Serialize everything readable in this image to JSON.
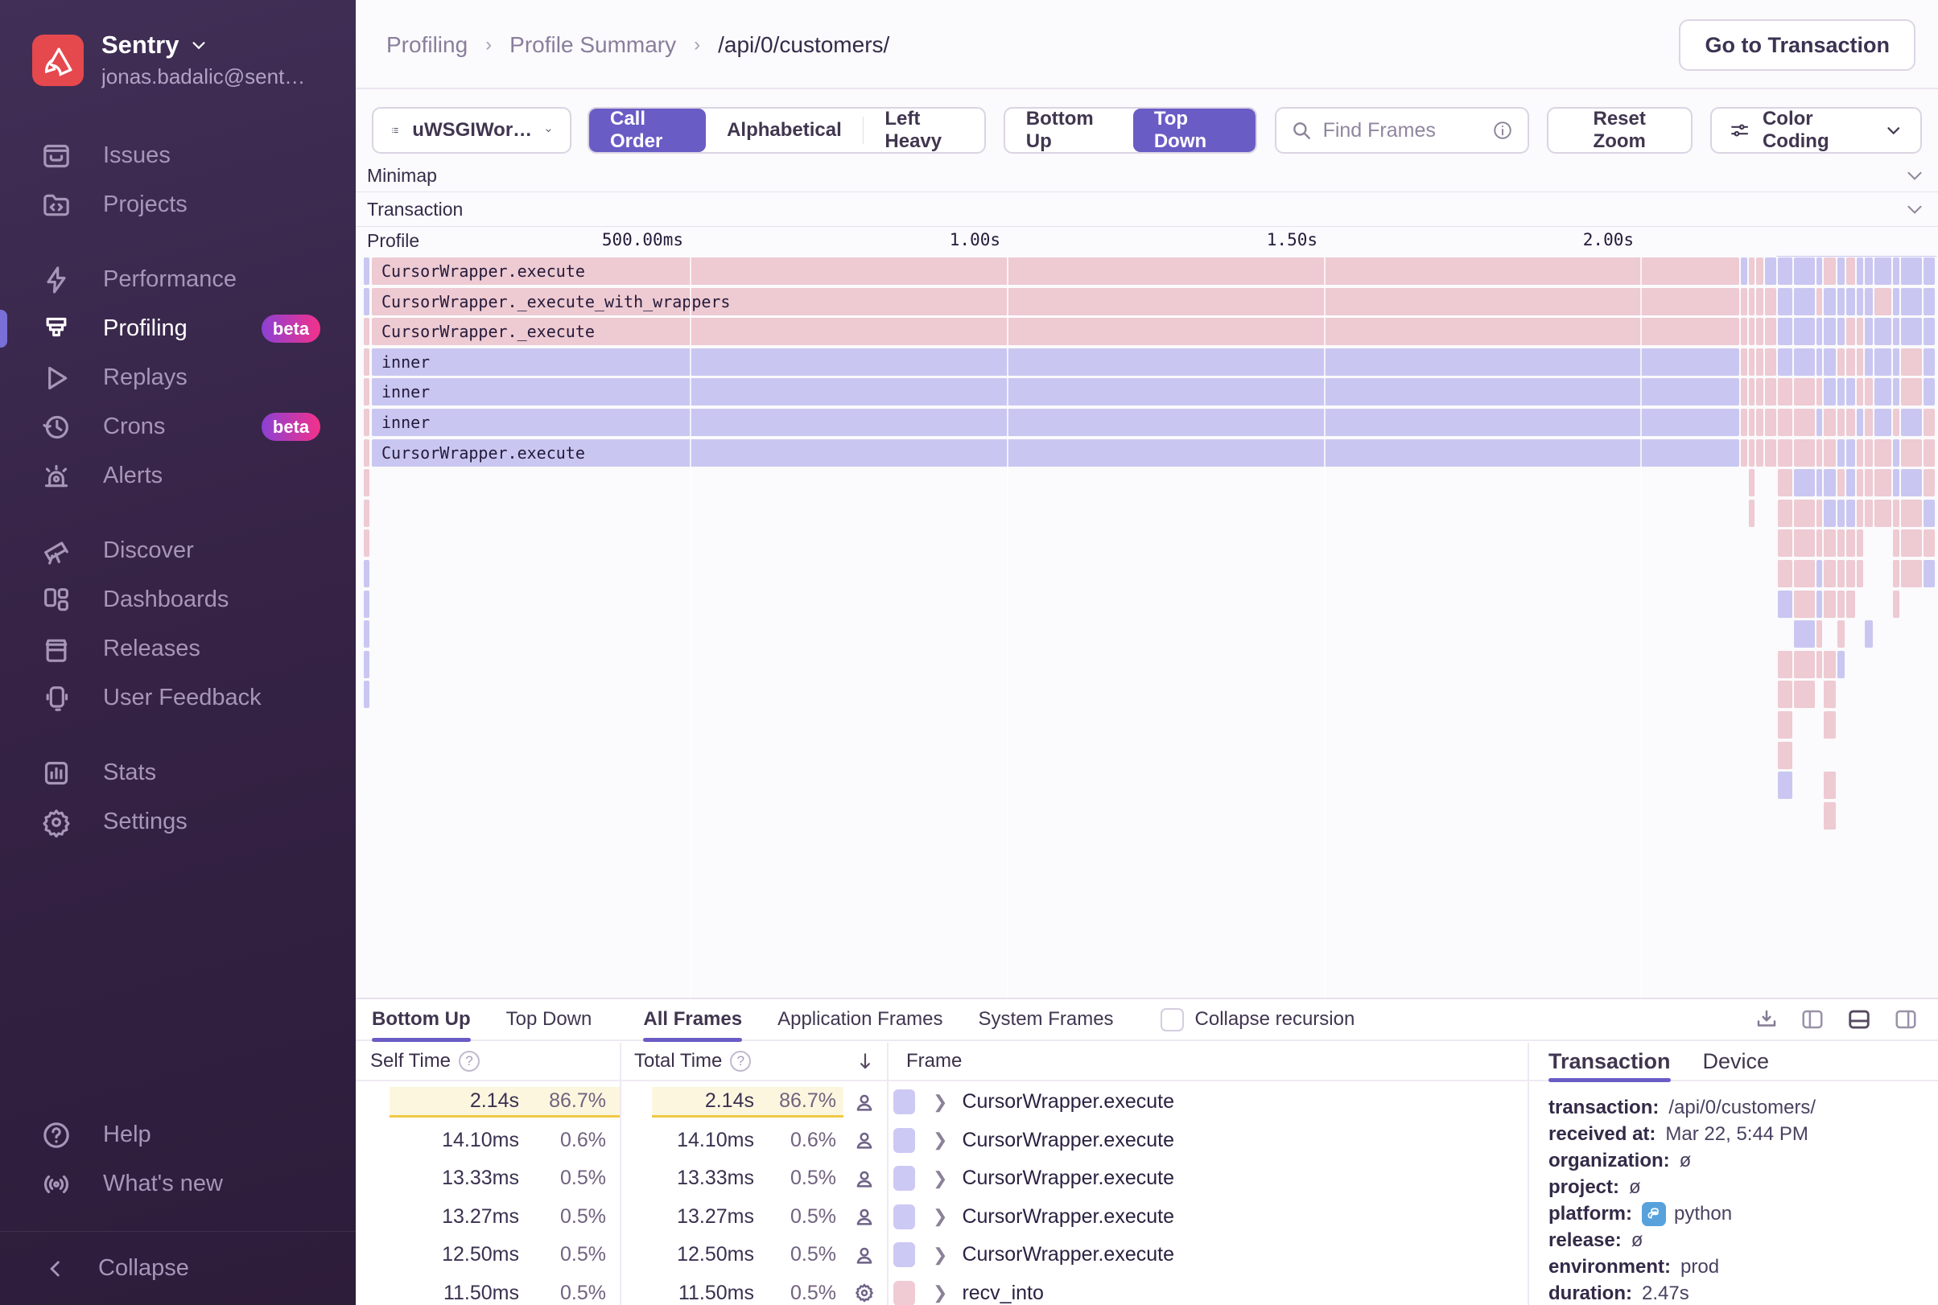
{
  "sidebar": {
    "brand": {
      "name": "Sentry",
      "email": "jonas.badalic@sent…"
    },
    "groups": [
      {
        "items": [
          {
            "icon": "issues-icon",
            "label": "Issues"
          },
          {
            "icon": "projects-icon",
            "label": "Projects"
          }
        ]
      },
      {
        "items": [
          {
            "icon": "performance-icon",
            "label": "Performance"
          },
          {
            "icon": "profiling-icon",
            "label": "Profiling",
            "badge": "beta",
            "active": true
          },
          {
            "icon": "replays-icon",
            "label": "Replays"
          },
          {
            "icon": "crons-icon",
            "label": "Crons",
            "badge": "beta"
          },
          {
            "icon": "alerts-icon",
            "label": "Alerts"
          }
        ]
      },
      {
        "items": [
          {
            "icon": "discover-icon",
            "label": "Discover"
          },
          {
            "icon": "dashboards-icon",
            "label": "Dashboards"
          },
          {
            "icon": "releases-icon",
            "label": "Releases"
          },
          {
            "icon": "user-feedback-icon",
            "label": "User Feedback"
          }
        ]
      },
      {
        "items": [
          {
            "icon": "stats-icon",
            "label": "Stats"
          },
          {
            "icon": "settings-icon",
            "label": "Settings"
          }
        ]
      },
      {
        "items": [
          {
            "icon": "help-icon",
            "label": "Help"
          },
          {
            "icon": "whats-new-icon",
            "label": "What's new"
          }
        ]
      }
    ],
    "collapse_label": "Collapse"
  },
  "header": {
    "breadcrumbs": [
      "Profiling",
      "Profile Summary",
      "/api/0/customers/"
    ],
    "action_button": "Go to Transaction"
  },
  "toolbar": {
    "thread_selector": "uWSGIWor…",
    "sort_options": [
      "Call Order",
      "Alphabetical",
      "Left Heavy"
    ],
    "sort_active": "Call Order",
    "direction_options": [
      "Bottom Up",
      "Top Down"
    ],
    "direction_active": "Top Down",
    "search_placeholder": "Find Frames",
    "reset_zoom_label": "Reset Zoom",
    "color_coding_label": "Color Coding"
  },
  "sections": {
    "minimap": "Minimap",
    "transaction": "Transaction",
    "profile": "Profile"
  },
  "time_axis": [
    "500.00ms",
    "1.00s",
    "1.50s",
    "2.00s"
  ],
  "flamegraph": {
    "main_frames": [
      {
        "name": "CursorWrapper.execute",
        "color": "pink"
      },
      {
        "name": "CursorWrapper._execute_with_wrappers",
        "color": "pink"
      },
      {
        "name": "CursorWrapper._execute",
        "color": "pink"
      },
      {
        "name": "inner",
        "color": "purple"
      },
      {
        "name": "inner",
        "color": "purple"
      },
      {
        "name": "inner",
        "color": "purple"
      },
      {
        "name": "CursorWrapper.execute",
        "color": "purple"
      }
    ],
    "left_strip": [
      "purple",
      "purple",
      "pink",
      "pink",
      "pink",
      "pink",
      "pink",
      "pink",
      "pink",
      "pink",
      "purple",
      "purple",
      "purple",
      "purple",
      "purple"
    ],
    "colors": {
      "pink": "#eecad2",
      "purple": "#c9c7f1"
    },
    "cluster_seed": 20230322
  },
  "bottom_panel": {
    "view_tabs": [
      {
        "label": "Bottom Up",
        "active": true
      },
      {
        "label": "Top Down",
        "active": false
      }
    ],
    "frame_tabs": [
      {
        "label": "All Frames",
        "active": true
      },
      {
        "label": "Application Frames",
        "active": false
      },
      {
        "label": "System Frames",
        "active": false
      }
    ],
    "collapse_recursion_label": "Collapse recursion",
    "headers": {
      "self_time": "Self Time",
      "total_time": "Total Time",
      "frame": "Frame"
    },
    "rows": [
      {
        "self_time": "2.14s",
        "self_pct": "86.7%",
        "total_time": "2.14s",
        "total_pct": "86.7%",
        "icon": "user-icon",
        "swatch": "purple",
        "frame": "CursorWrapper.execute",
        "highlight": true
      },
      {
        "self_time": "14.10ms",
        "self_pct": "0.6%",
        "total_time": "14.10ms",
        "total_pct": "0.6%",
        "icon": "user-icon",
        "swatch": "purple",
        "frame": "CursorWrapper.execute",
        "highlight": false
      },
      {
        "self_time": "13.33ms",
        "self_pct": "0.5%",
        "total_time": "13.33ms",
        "total_pct": "0.5%",
        "icon": "user-icon",
        "swatch": "purple",
        "frame": "CursorWrapper.execute",
        "highlight": false
      },
      {
        "self_time": "13.27ms",
        "self_pct": "0.5%",
        "total_time": "13.27ms",
        "total_pct": "0.5%",
        "icon": "user-icon",
        "swatch": "purple",
        "frame": "CursorWrapper.execute",
        "highlight": false
      },
      {
        "self_time": "12.50ms",
        "self_pct": "0.5%",
        "total_time": "12.50ms",
        "total_pct": "0.5%",
        "icon": "user-icon",
        "swatch": "purple",
        "frame": "CursorWrapper.execute",
        "highlight": false
      },
      {
        "self_time": "11.50ms",
        "self_pct": "0.5%",
        "total_time": "11.50ms",
        "total_pct": "0.5%",
        "icon": "gear-icon",
        "swatch": "pink",
        "frame": "recv_into",
        "highlight": false
      }
    ]
  },
  "details_panel": {
    "tabs": [
      {
        "label": "Transaction",
        "active": true
      },
      {
        "label": "Device",
        "active": false
      }
    ],
    "fields": [
      {
        "label": "transaction:",
        "value": "/api/0/customers/"
      },
      {
        "label": "received at:",
        "value": "Mar 22, 5:44 PM"
      },
      {
        "label": "organization:",
        "value": "ø"
      },
      {
        "label": "project:",
        "value": "ø"
      },
      {
        "label": "platform:",
        "value": "python",
        "icon": "python-icon"
      },
      {
        "label": "release:",
        "value": "ø"
      },
      {
        "label": "environment:",
        "value": "prod"
      },
      {
        "label": "duration:",
        "value": "2.47s"
      }
    ]
  },
  "colors": {
    "accent": "#6a5cc5",
    "flame_pink": "#eecad2",
    "flame_purple": "#c9c7f1",
    "highlight_yellow": "#fdf6df",
    "sentry_red": "#e5484d"
  }
}
